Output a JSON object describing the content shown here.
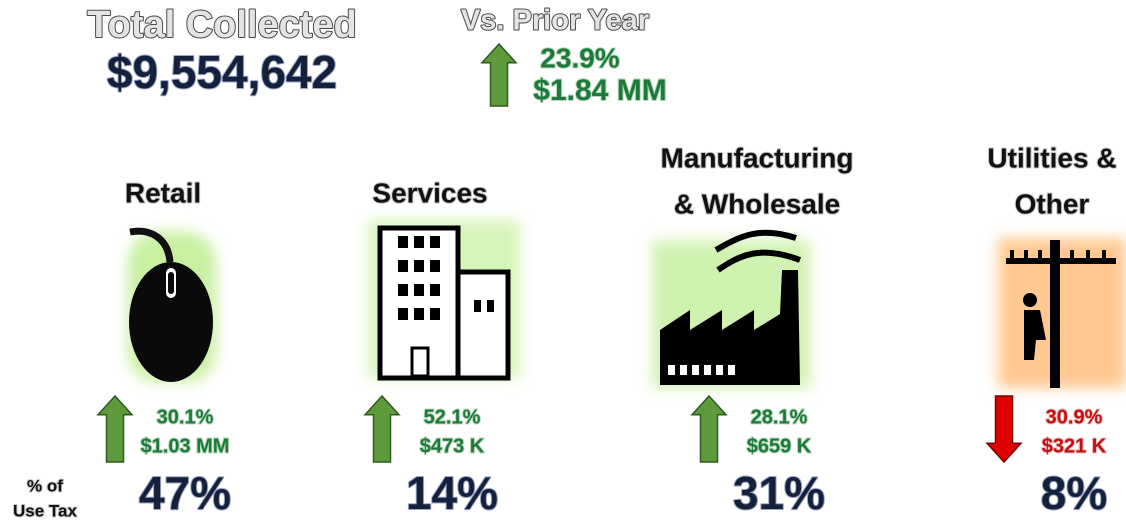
{
  "header": {
    "total_label": "Total Collected",
    "total_value": "$9,554,642",
    "prior_label": "Vs. Prior Year",
    "prior_trend": "up",
    "prior_pct": "23.9%",
    "prior_amount": "$1.84 MM"
  },
  "share_label": [
    "% of",
    "Use Tax"
  ],
  "sectors": [
    {
      "name": [
        "Retail"
      ],
      "trend": "up",
      "pct_change": "30.1%",
      "amount_change": "$1.03 MM",
      "share": "47%"
    },
    {
      "name": [
        "Services"
      ],
      "trend": "up",
      "pct_change": "52.1%",
      "amount_change": "$473 K",
      "share": "14%"
    },
    {
      "name": [
        "Manufacturing",
        "& Wholesale"
      ],
      "trend": "up",
      "pct_change": "28.1%",
      "amount_change": "$659 K",
      "share": "31%"
    },
    {
      "name": [
        "Utilities &",
        "Other"
      ],
      "trend": "down",
      "pct_change": "30.9%",
      "amount_change": "$321 K",
      "share": "8%"
    }
  ]
}
